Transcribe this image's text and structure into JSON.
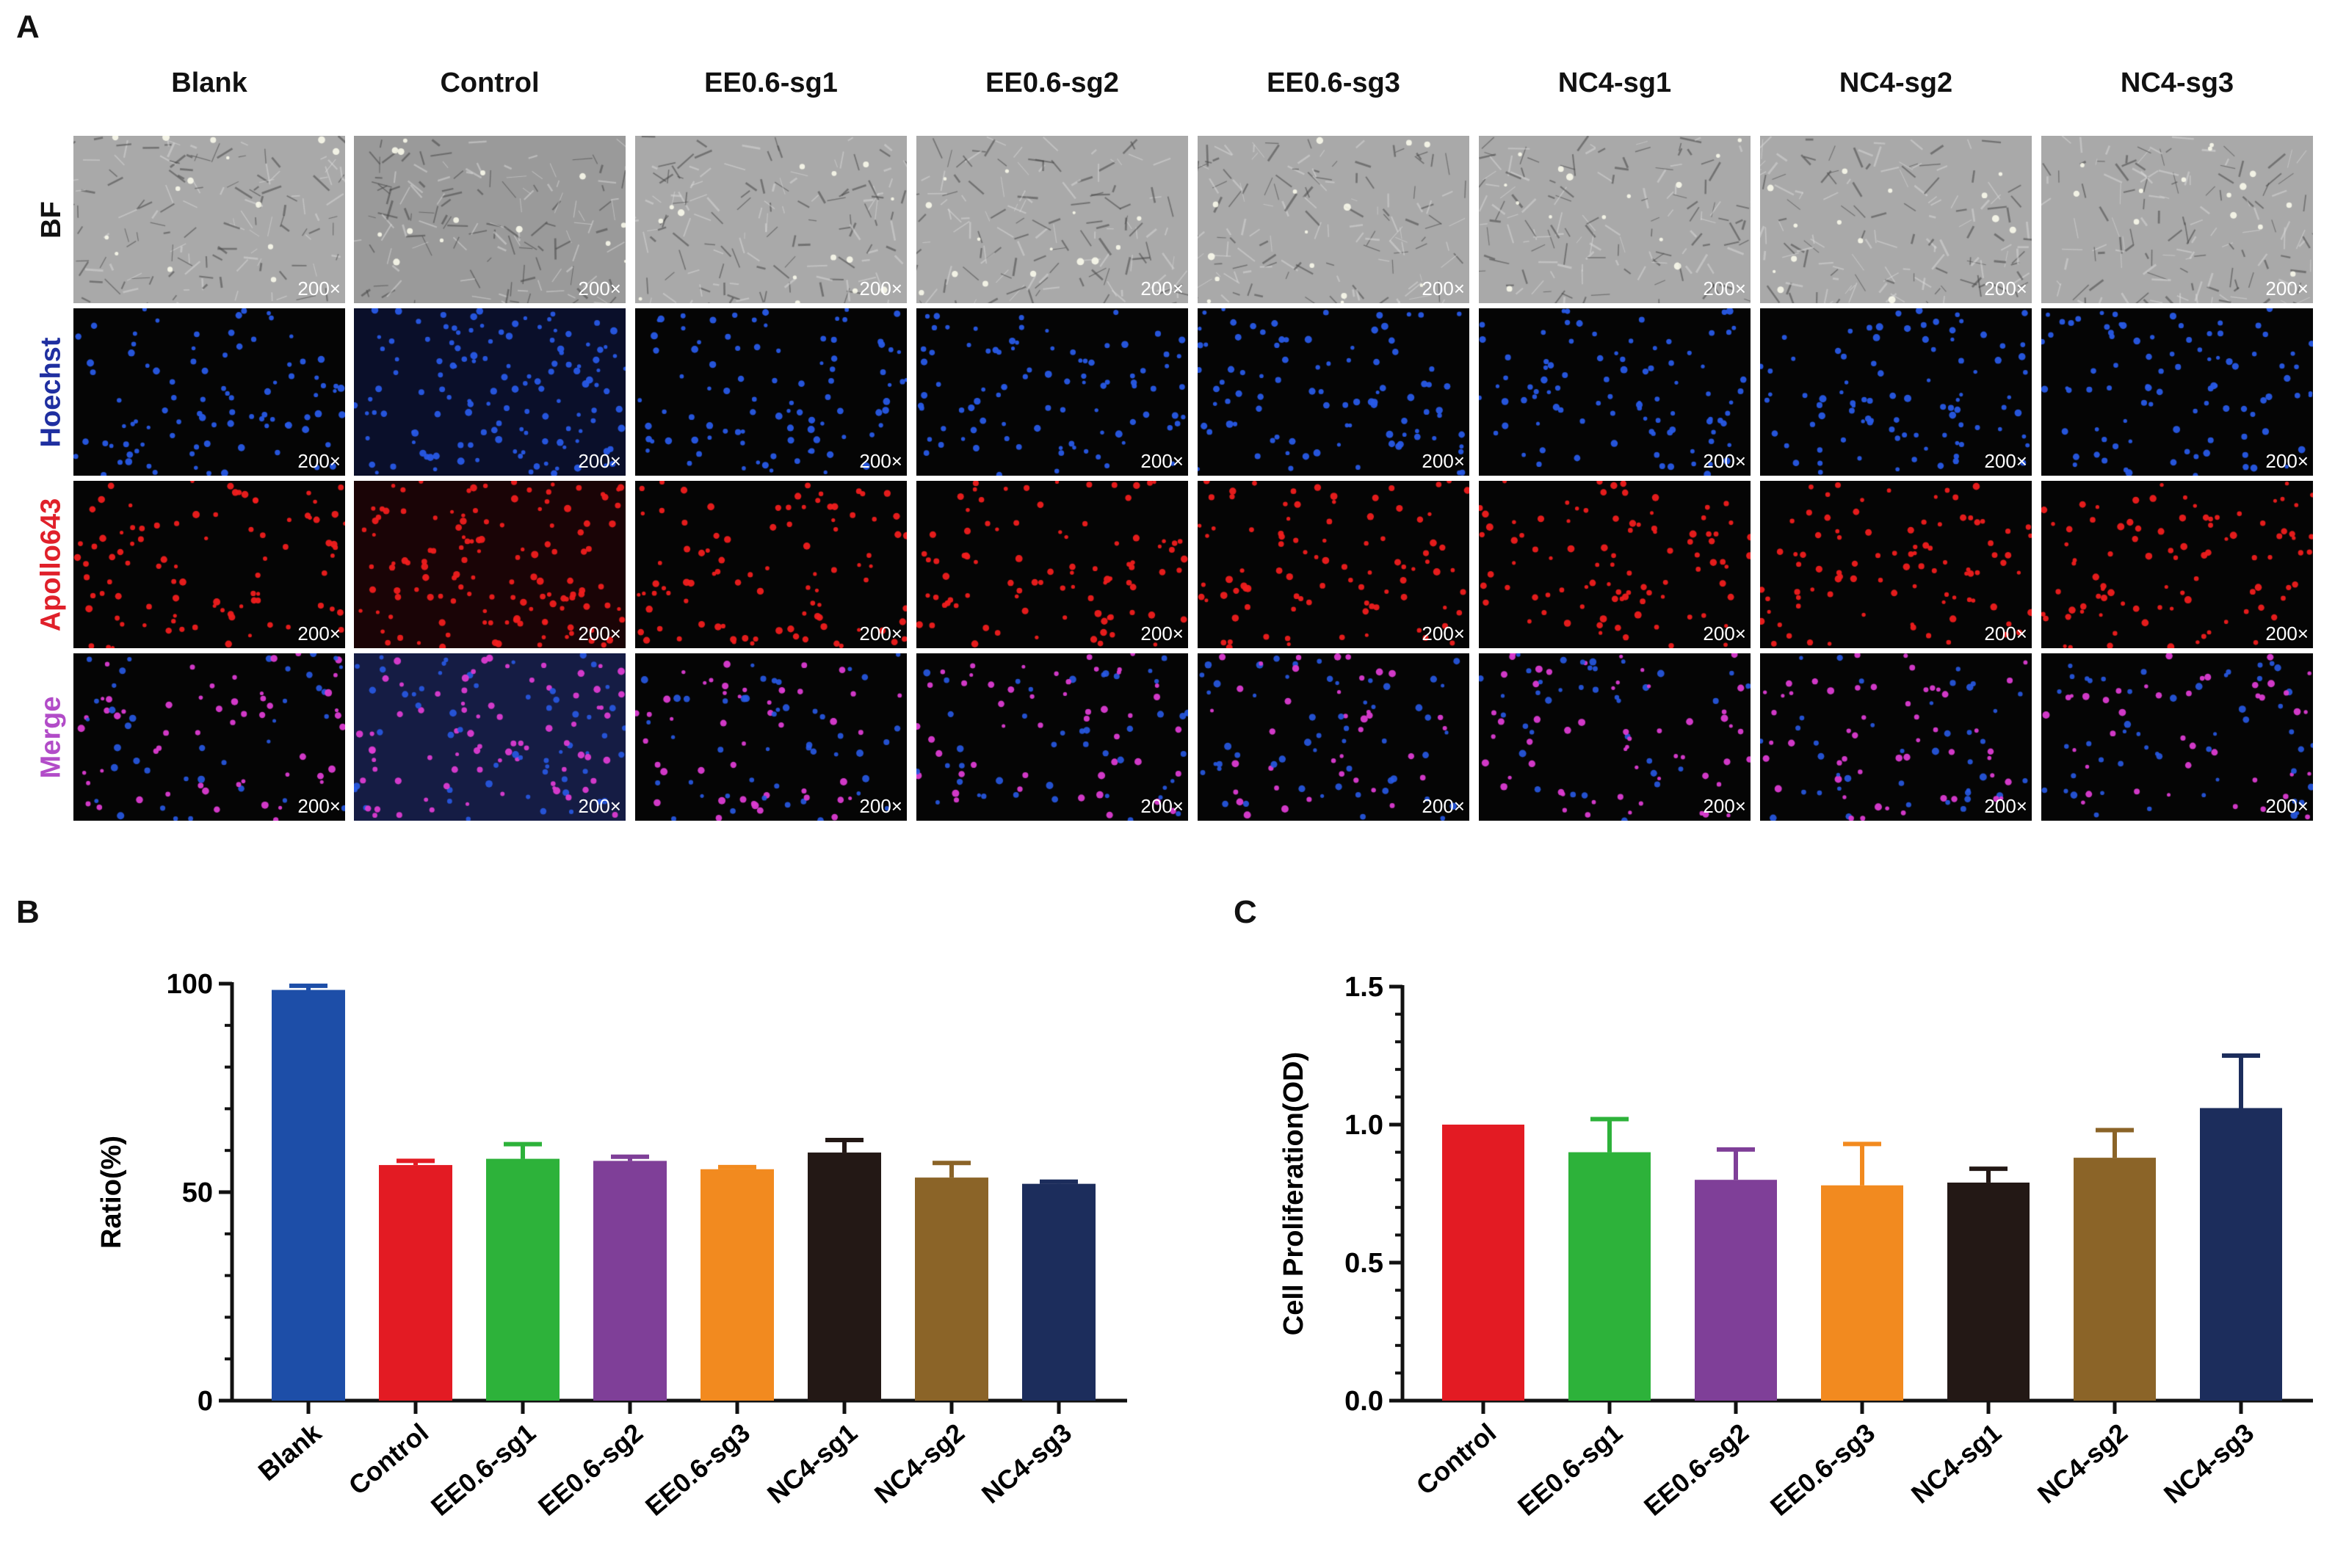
{
  "panel_labels": {
    "a": "A",
    "b": "B",
    "c": "C"
  },
  "microscopy": {
    "columns": [
      "Blank",
      "Control",
      "EE0.6-sg1",
      "EE0.6-sg2",
      "EE0.6-sg3",
      "NC4-sg1",
      "NC4-sg2",
      "NC4-sg3"
    ],
    "rows": [
      {
        "label": "BF",
        "color": "#111111",
        "kind": "bf"
      },
      {
        "label": "Hoechst",
        "color": "#1f2fa0",
        "kind": "hoechst"
      },
      {
        "label": "Apollo643",
        "color": "#e0202a",
        "kind": "apollo"
      },
      {
        "label": "Merge",
        "color": "#b24cc8",
        "kind": "merge"
      }
    ],
    "magnification": "200×"
  },
  "chart_data": [
    {
      "type": "bar",
      "panel": "B",
      "categories": [
        "Blank",
        "Control",
        "EE0.6-sg1",
        "EE0.6-sg2",
        "EE0.6-sg3",
        "NC4-sg1",
        "NC4-sg2",
        "NC4-sg3"
      ],
      "values": [
        98.5,
        56.5,
        58,
        57.5,
        55.5,
        59.5,
        53.5,
        52
      ],
      "errors": [
        1,
        1,
        3.5,
        1,
        0.5,
        3,
        3.5,
        0.5
      ],
      "colors": [
        "#1d4ea8",
        "#e31b23",
        "#2db23a",
        "#7f3f98",
        "#f28a1f",
        "#231815",
        "#8b6428",
        "#1c2d5c"
      ],
      "title": "",
      "xlabel": "",
      "ylabel": "Ratio(%)",
      "ylim": [
        0,
        100
      ],
      "yticks": [
        0,
        50,
        100
      ],
      "ytick_labels": [
        "0",
        "50",
        "100"
      ]
    },
    {
      "type": "bar",
      "panel": "C",
      "categories": [
        "Control",
        "EE0.6-sg1",
        "EE0.6-sg2",
        "EE0.6-sg3",
        "NC4-sg1",
        "NC4-sg2",
        "NC4-sg3"
      ],
      "values": [
        1.0,
        0.9,
        0.8,
        0.78,
        0.79,
        0.88,
        1.06
      ],
      "errors": [
        0,
        0.12,
        0.11,
        0.15,
        0.05,
        0.1,
        0.19
      ],
      "colors": [
        "#e31b23",
        "#2db23a",
        "#7f3f98",
        "#f28a1f",
        "#231815",
        "#8b6428",
        "#1c2d5c"
      ],
      "title": "",
      "xlabel": "",
      "ylabel": "Cell Proliferation(OD)",
      "ylim": [
        0,
        1.5
      ],
      "yticks": [
        0,
        0.5,
        1.0,
        1.5
      ],
      "ytick_labels": [
        "0.0",
        "0.5",
        "1.0",
        "1.5"
      ]
    }
  ]
}
